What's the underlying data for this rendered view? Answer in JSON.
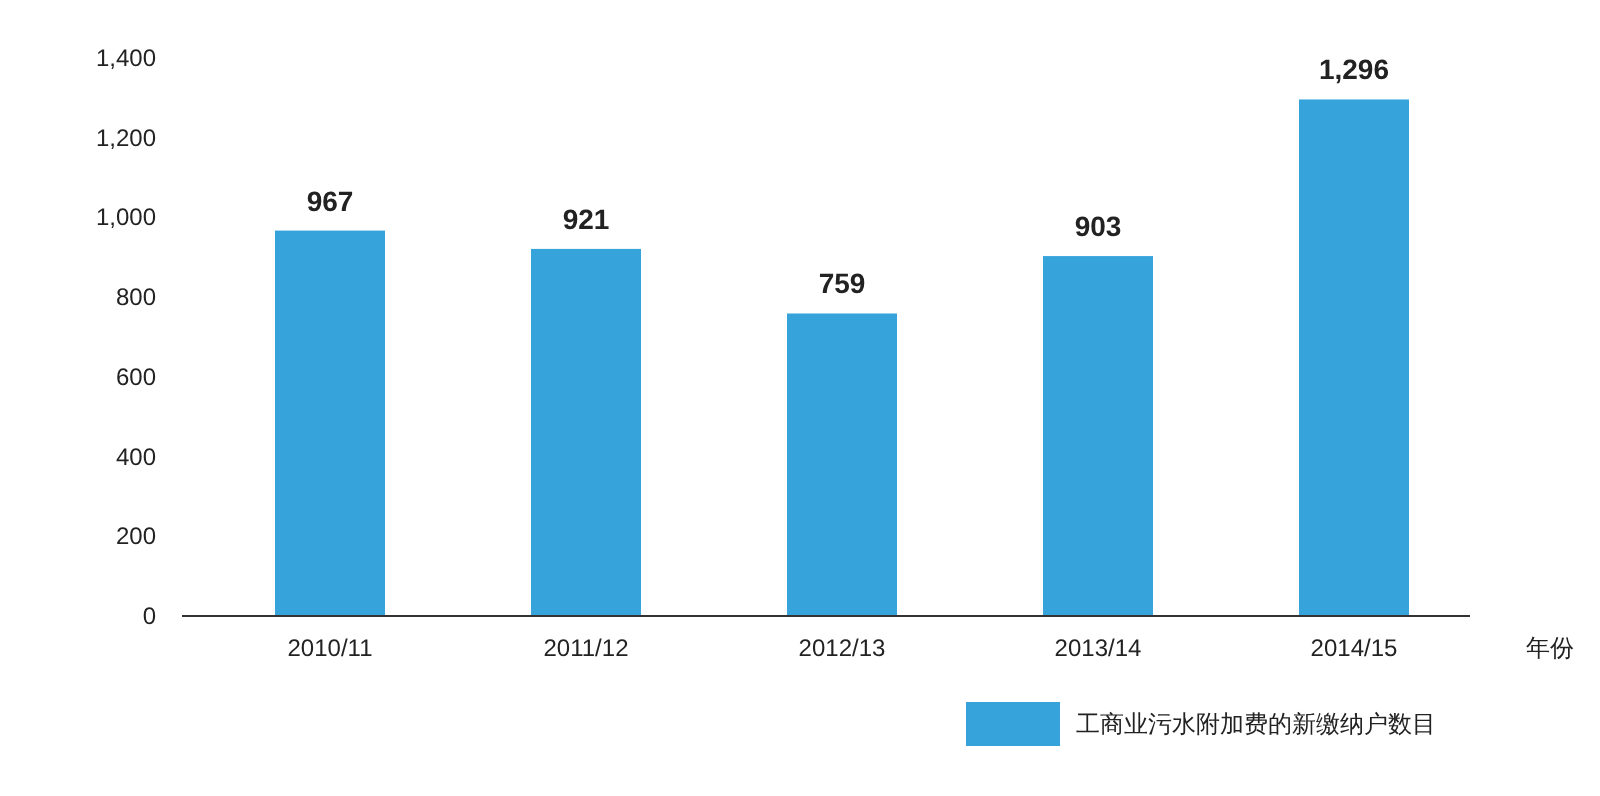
{
  "chart_data": {
    "type": "bar",
    "categories": [
      "2010/11",
      "2011/12",
      "2012/13",
      "2013/14",
      "2014/15"
    ],
    "series": [
      {
        "name": "工商业污水附加费的新缴纳户数目",
        "color": "#36a3db",
        "values": [
          967,
          921,
          759,
          903,
          1296
        ],
        "value_labels": [
          "967",
          "921",
          "759",
          "903",
          "1,296"
        ]
      }
    ],
    "xlabel": "年份",
    "ylim": [
      0,
      1400
    ],
    "yticks": [
      0,
      200,
      400,
      600,
      800,
      {
        "value": 1000,
        "label": "1,000"
      },
      {
        "value": 1200,
        "label": "1,200"
      },
      {
        "value": 1400,
        "label": "1,400"
      }
    ],
    "legend": "bottom right"
  }
}
